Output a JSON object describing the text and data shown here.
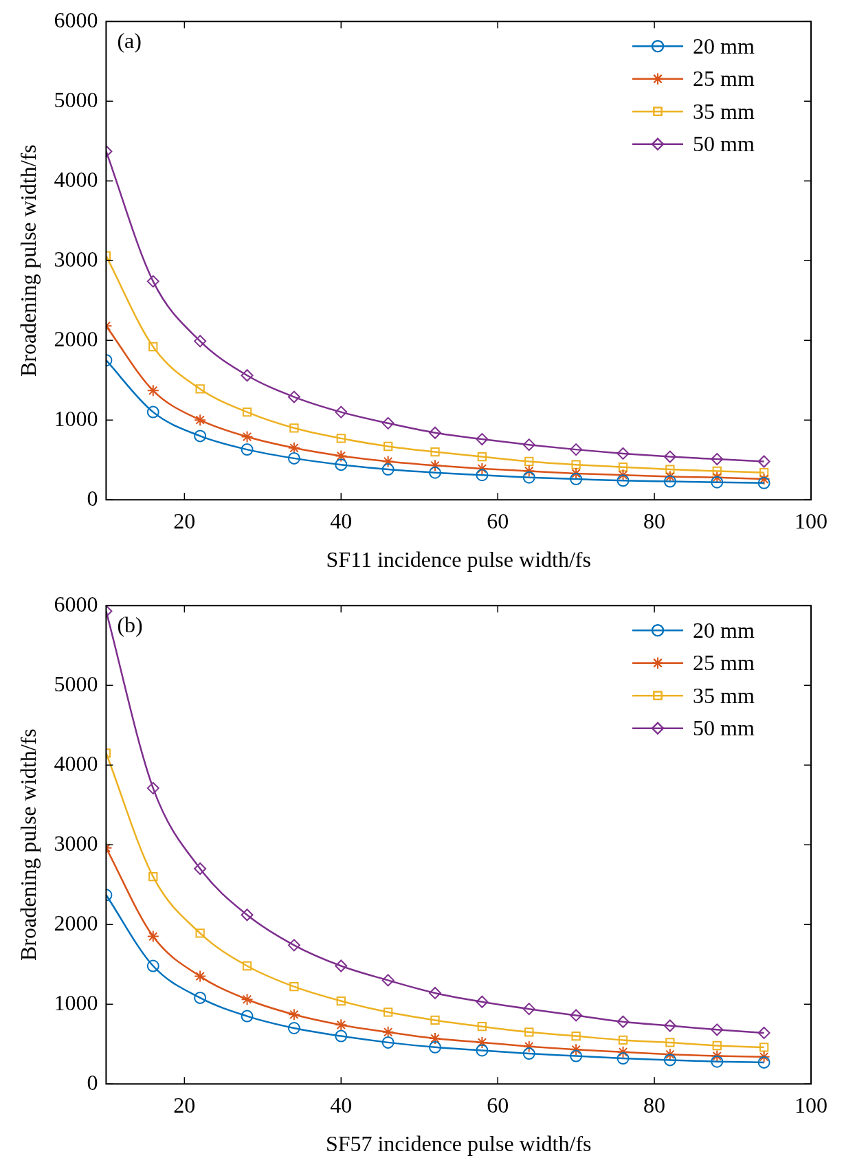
{
  "chart_data": [
    {
      "type": "line",
      "annotations": [
        "(a)"
      ],
      "xlabel": "SF11 incidence pulse width/fs",
      "ylabel": "Broadening pulse width/fs",
      "x": [
        10,
        16,
        22,
        28,
        34,
        40,
        46,
        52,
        58,
        64,
        70,
        76,
        82,
        88,
        94
      ],
      "xlim": [
        10,
        100
      ],
      "xticks": [
        20,
        40,
        60,
        80,
        100
      ],
      "ylim": [
        0,
        6000
      ],
      "yticks": [
        0,
        1000,
        2000,
        3000,
        4000,
        5000,
        6000
      ],
      "grid": false,
      "legend": "top right",
      "line_style": "solid",
      "series": [
        {
          "name": "20 mm",
          "color": "#0072bd",
          "marker": "circle",
          "values": [
            1750,
            1100,
            800,
            630,
            520,
            440,
            380,
            340,
            310,
            280,
            260,
            240,
            230,
            220,
            210
          ]
        },
        {
          "name": "25 mm",
          "color": "#d95319",
          "marker": "cross",
          "values": [
            2180,
            1370,
            1000,
            790,
            650,
            550,
            480,
            430,
            390,
            360,
            330,
            310,
            290,
            280,
            260
          ]
        },
        {
          "name": "35 mm",
          "color": "#edb120",
          "marker": "square",
          "values": [
            3060,
            1920,
            1390,
            1100,
            900,
            770,
            670,
            600,
            540,
            480,
            440,
            410,
            380,
            360,
            340
          ]
        },
        {
          "name": "50 mm",
          "color": "#7e2f8e",
          "marker": "diamond",
          "values": [
            4370,
            2740,
            1990,
            1560,
            1290,
            1100,
            960,
            840,
            760,
            690,
            630,
            580,
            540,
            510,
            480
          ]
        }
      ]
    },
    {
      "type": "line",
      "annotations": [
        "(b)"
      ],
      "xlabel": "SF57 incidence pulse width/fs",
      "ylabel": "Broadening pulse width/fs",
      "x": [
        10,
        16,
        22,
        28,
        34,
        40,
        46,
        52,
        58,
        64,
        70,
        76,
        82,
        88,
        94
      ],
      "xlim": [
        10,
        100
      ],
      "xticks": [
        20,
        40,
        60,
        80,
        100
      ],
      "ylim": [
        0,
        6000
      ],
      "yticks": [
        0,
        1000,
        2000,
        3000,
        4000,
        5000,
        6000
      ],
      "grid": false,
      "legend": "top right",
      "line_style": "solid",
      "series": [
        {
          "name": "20 mm",
          "color": "#0072bd",
          "marker": "circle",
          "values": [
            2370,
            1480,
            1080,
            850,
            700,
            600,
            520,
            460,
            420,
            380,
            350,
            320,
            300,
            280,
            270
          ]
        },
        {
          "name": "25 mm",
          "color": "#d95319",
          "marker": "cross",
          "values": [
            2960,
            1850,
            1350,
            1060,
            870,
            740,
            650,
            570,
            520,
            470,
            430,
            400,
            370,
            350,
            340
          ]
        },
        {
          "name": "35 mm",
          "color": "#edb120",
          "marker": "square",
          "values": [
            4150,
            2600,
            1890,
            1480,
            1220,
            1040,
            900,
            800,
            720,
            650,
            600,
            550,
            520,
            480,
            460
          ]
        },
        {
          "name": "50 mm",
          "color": "#7e2f8e",
          "marker": "diamond",
          "values": [
            5930,
            3710,
            2700,
            2120,
            1740,
            1480,
            1300,
            1140,
            1030,
            940,
            860,
            780,
            730,
            680,
            640
          ]
        }
      ]
    }
  ]
}
